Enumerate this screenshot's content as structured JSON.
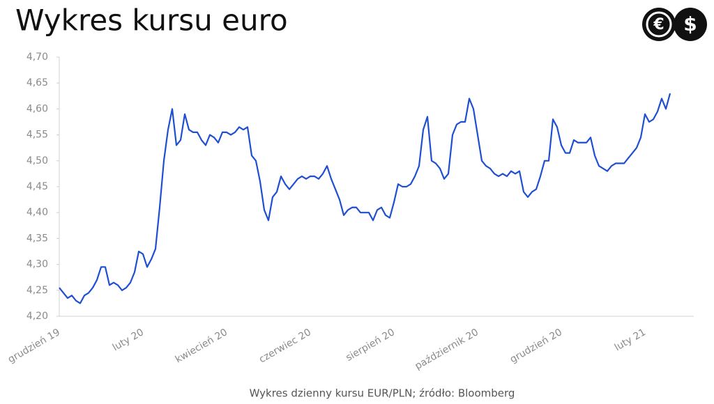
{
  "chart_data": {
    "type": "line",
    "title": "Wykres kursu euro",
    "caption": "Wykres dzienny kursu EUR/PLN; źródło: Bloomberg",
    "categories": [
      "grudzień 19",
      null,
      null,
      null,
      null,
      null,
      null,
      null,
      null,
      null,
      null,
      null,
      null,
      null,
      null,
      null,
      null,
      null,
      null,
      null,
      "luty 20",
      null,
      null,
      null,
      null,
      null,
      null,
      null,
      null,
      null,
      null,
      null,
      null,
      null,
      null,
      null,
      null,
      null,
      null,
      null,
      "kwiecień 20",
      null,
      null,
      null,
      null,
      null,
      null,
      null,
      null,
      null,
      null,
      null,
      null,
      null,
      null,
      null,
      null,
      null,
      null,
      null,
      "czerwiec 20",
      null,
      null,
      null,
      null,
      null,
      null,
      null,
      null,
      null,
      null,
      null,
      null,
      null,
      null,
      null,
      null,
      null,
      null,
      null,
      "sierpień 20",
      null,
      null,
      null,
      null,
      null,
      null,
      null,
      null,
      null,
      null,
      null,
      null,
      null,
      null,
      null,
      null,
      null,
      null,
      null,
      "październik 20",
      null,
      null,
      null,
      null,
      null,
      null,
      null,
      null,
      null,
      null,
      null,
      null,
      null,
      null,
      null,
      null,
      null,
      null,
      null,
      "grudzień 20",
      null,
      null,
      null,
      null,
      null,
      null,
      null,
      null,
      null,
      null,
      null,
      null,
      null,
      null,
      null,
      null,
      null,
      null,
      null,
      "luty 21",
      null,
      null,
      null,
      null,
      null,
      null
    ],
    "series": [
      {
        "name": "EUR/PLN",
        "color": "#1f4fd1",
        "values": [
          4.255,
          4.245,
          4.235,
          4.24,
          4.23,
          4.225,
          4.24,
          4.245,
          4.255,
          4.27,
          4.295,
          4.295,
          4.26,
          4.265,
          4.26,
          4.25,
          4.255,
          4.265,
          4.285,
          4.325,
          4.32,
          4.295,
          4.31,
          4.33,
          4.41,
          4.5,
          4.56,
          4.6,
          4.53,
          4.54,
          4.59,
          4.56,
          4.555,
          4.555,
          4.54,
          4.53,
          4.55,
          4.545,
          4.535,
          4.555,
          4.555,
          4.55,
          4.555,
          4.565,
          4.56,
          4.565,
          4.51,
          4.5,
          4.46,
          4.405,
          4.385,
          4.43,
          4.44,
          4.47,
          4.455,
          4.445,
          4.455,
          4.465,
          4.47,
          4.465,
          4.47,
          4.47,
          4.465,
          4.475,
          4.49,
          4.465,
          4.445,
          4.425,
          4.395,
          4.405,
          4.41,
          4.41,
          4.4,
          4.4,
          4.4,
          4.385,
          4.405,
          4.41,
          4.395,
          4.39,
          4.42,
          4.455,
          4.45,
          4.45,
          4.455,
          4.47,
          4.49,
          4.56,
          4.585,
          4.5,
          4.495,
          4.485,
          4.465,
          4.475,
          4.55,
          4.57,
          4.575,
          4.575,
          4.62,
          4.6,
          4.55,
          4.5,
          4.49,
          4.485,
          4.475,
          4.47,
          4.475,
          4.47,
          4.48,
          4.475,
          4.48,
          4.44,
          4.43,
          4.44,
          4.445,
          4.47,
          4.5,
          4.5,
          4.58,
          4.565,
          4.53,
          4.515,
          4.515,
          4.54,
          4.535,
          4.535,
          4.535,
          4.545,
          4.51,
          4.49,
          4.485,
          4.48,
          4.49,
          4.495,
          4.495,
          4.495,
          4.505,
          4.515,
          4.525,
          4.545,
          4.59,
          4.575,
          4.58,
          4.595,
          4.62,
          4.6,
          4.63
        ]
      }
    ],
    "ylim": [
      4.2,
      4.7
    ],
    "yticks": [
      {
        "value": 4.2,
        "label": "4,20"
      },
      {
        "value": 4.25,
        "label": "4,25"
      },
      {
        "value": 4.3,
        "label": "4,30"
      },
      {
        "value": 4.35,
        "label": "4,35"
      },
      {
        "value": 4.4,
        "label": "4,40"
      },
      {
        "value": 4.45,
        "label": "4,45"
      },
      {
        "value": 4.5,
        "label": "4,50"
      },
      {
        "value": 4.55,
        "label": "4,55"
      },
      {
        "value": 4.6,
        "label": "4,60"
      },
      {
        "value": 4.65,
        "label": "4,65"
      },
      {
        "value": 4.7,
        "label": "4,70"
      }
    ],
    "grid": false
  },
  "logo": {
    "symbols": [
      "€",
      "$"
    ]
  }
}
